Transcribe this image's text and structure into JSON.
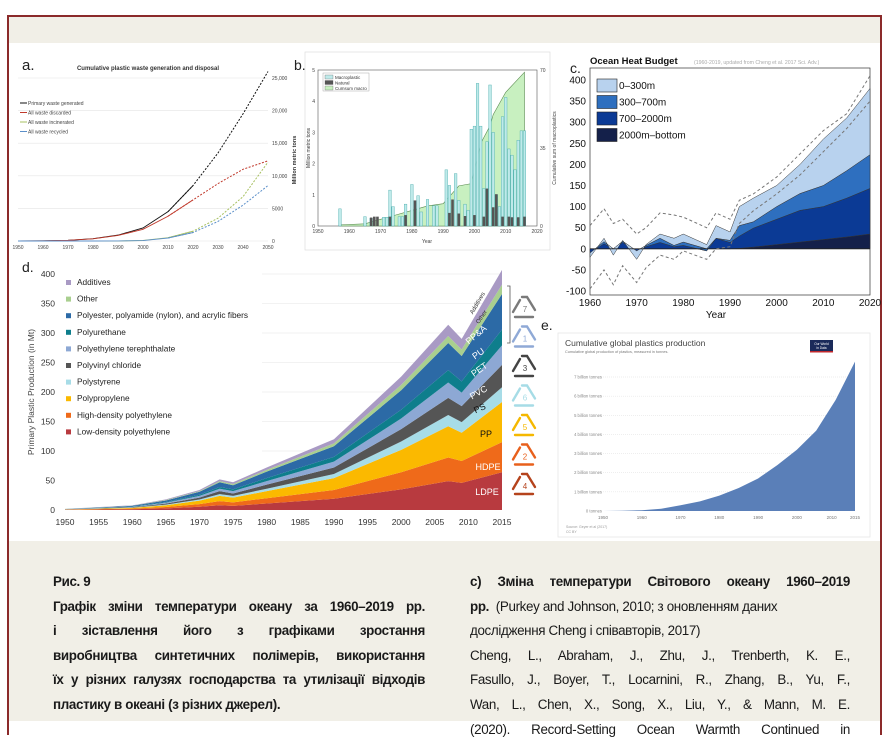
{
  "caption": {
    "fig_label": "Рис. 9",
    "left_lines": [
      "Графік зміни температури океану за 1960–2019 рр.",
      "і зіставлення його з графіками зростання",
      "виробництва синтетичних полімерів, використання",
      "їх у різних галузях господарства та утилізації відходів",
      "пластику в океані (з різних джерел)."
    ],
    "right_title_lines": [
      "c) Зміна температури Світового океану 1960–2019",
      "рр."
    ],
    "right_note_a": "(Purkey and Johnson, 2010; з оновленням даних",
    "right_note_b": "дослідження Cheng і співавторів, 2017)",
    "right_ref_lines": [
      "Cheng, L., Abraham, J., Zhu, J., Trenberth, K. E.,",
      "Fasullo, J., Boyer, T., Locarnini, R., Zhang, B., Yu, F.,",
      "Wan, L., Chen, X., Song, X., Liu, Y., & Mann, M. E.",
      "(2020). Record-Setting Ocean Warmth Continued in"
    ]
  },
  "chart_data": [
    {
      "panel": "a.",
      "type": "line",
      "title": "Cumulative plastic waste generation and disposal",
      "ylabel": "Million metric tons",
      "xlim": [
        1950,
        2050
      ],
      "ylim": [
        0,
        25000
      ],
      "xticks": [
        1950,
        1960,
        1970,
        1980,
        1990,
        2000,
        2010,
        2020,
        2030,
        2040,
        2050
      ],
      "yticks": [
        0,
        5000,
        10000,
        15000,
        20000,
        25000
      ],
      "ytick_labels": [
        "0",
        "5000",
        "10,000",
        "15,000",
        "20,000",
        "25,000"
      ],
      "grid": true,
      "legend": "top-left",
      "projection_from": 2015,
      "x": [
        1950,
        1960,
        1970,
        1980,
        1990,
        2000,
        2010,
        2020,
        2030,
        2040,
        2050
      ],
      "series": [
        {
          "name": "Primary waste generated",
          "color": "#111111",
          "values": [
            0,
            30,
            100,
            350,
            900,
            2000,
            4500,
            8500,
            13500,
            19500,
            26000
          ]
        },
        {
          "name": "All waste discarded",
          "color": "#c0392b",
          "values": [
            0,
            30,
            100,
            340,
            850,
            1800,
            3800,
            6300,
            8800,
            11000,
            12300
          ]
        },
        {
          "name": "All waste incinerated",
          "color": "#a7c060",
          "values": [
            0,
            0,
            0,
            0,
            10,
            80,
            500,
            1500,
            3500,
            6800,
            12100
          ]
        },
        {
          "name": "All waste recycled",
          "color": "#5b8fc9",
          "values": [
            0,
            0,
            0,
            0,
            5,
            60,
            450,
            1300,
            3000,
            5500,
            8500
          ]
        }
      ]
    },
    {
      "panel": "b.",
      "type": "bar",
      "xlabel": "Year",
      "ylabel": "Million metric tons",
      "y2label": "Cumulative sum of macroplastics",
      "xlim": [
        1950,
        2020
      ],
      "ylim": [
        0,
        5
      ],
      "y2lim": [
        0,
        70
      ],
      "xticks": [
        1950,
        1960,
        1970,
        1980,
        1990,
        2000,
        2010,
        2020
      ],
      "yticks": [
        0,
        1,
        2,
        3,
        4,
        5
      ],
      "y2ticks": [
        0,
        35,
        70
      ],
      "legend": "top-left",
      "series_names": {
        "macro": "Macroplastic",
        "natural": "Natural",
        "cumsum": "Cumsum macro"
      },
      "colors": {
        "macro": "#bfeaea",
        "natural": "#555555",
        "cumsum": "#c8f0c0"
      },
      "bars": [
        {
          "year": 1957,
          "macro": 0.55,
          "natural": 0
        },
        {
          "year": 1965,
          "macro": 0.3,
          "natural": 0
        },
        {
          "year": 1967,
          "macro": 0.25,
          "natural": 0.27
        },
        {
          "year": 1968,
          "macro": 0,
          "natural": 0.3
        },
        {
          "year": 1969,
          "macro": 0,
          "natural": 0.3
        },
        {
          "year": 1971,
          "macro": 0.28,
          "natural": 0
        },
        {
          "year": 1972,
          "macro": 0.28,
          "natural": 0
        },
        {
          "year": 1973,
          "macro": 1.15,
          "natural": 0.3
        },
        {
          "year": 1974,
          "macro": 0.62,
          "natural": 0
        },
        {
          "year": 1976,
          "macro": 0.3,
          "natural": 0
        },
        {
          "year": 1977,
          "macro": 0.3,
          "natural": 0
        },
        {
          "year": 1978,
          "macro": 0.7,
          "natural": 0.35
        },
        {
          "year": 1980,
          "macro": 1.33,
          "natural": 0
        },
        {
          "year": 1981,
          "macro": 0,
          "natural": 0.82
        },
        {
          "year": 1982,
          "macro": 0.97,
          "natural": 0
        },
        {
          "year": 1983,
          "macro": 0.45,
          "natural": 0
        },
        {
          "year": 1985,
          "macro": 0.85,
          "natural": 0
        },
        {
          "year": 1987,
          "macro": 0.65,
          "natural": 0
        },
        {
          "year": 1988,
          "macro": 0.65,
          "natural": 0
        },
        {
          "year": 1991,
          "macro": 1.8,
          "natural": 0
        },
        {
          "year": 1992,
          "macro": 1.3,
          "natural": 0.42
        },
        {
          "year": 1993,
          "macro": 0,
          "natural": 0.85
        },
        {
          "year": 1994,
          "macro": 1.68,
          "natural": 0
        },
        {
          "year": 1995,
          "macro": 0.82,
          "natural": 0.4
        },
        {
          "year": 1997,
          "macro": 0.7,
          "natural": 0.32
        },
        {
          "year": 1998,
          "macro": 0.5,
          "natural": 0
        },
        {
          "year": 1999,
          "macro": 3.1,
          "natural": 0
        },
        {
          "year": 2000,
          "macro": 3.2,
          "natural": 0.35
        },
        {
          "year": 2001,
          "macro": 4.57,
          "natural": 0
        },
        {
          "year": 2002,
          "macro": 3.2,
          "natural": 0
        },
        {
          "year": 2003,
          "macro": 1.2,
          "natural": 0.3
        },
        {
          "year": 2004,
          "macro": 2.7,
          "natural": 1.2
        },
        {
          "year": 2005,
          "macro": 4.52,
          "natural": 0
        },
        {
          "year": 2006,
          "macro": 3.0,
          "natural": 0.6
        },
        {
          "year": 2007,
          "macro": 1.0,
          "natural": 1.02
        },
        {
          "year": 2008,
          "macro": 0.62,
          "natural": 0
        },
        {
          "year": 2009,
          "macro": 3.5,
          "natural": 0.3
        },
        {
          "year": 2010,
          "macro": 4.12,
          "natural": 0
        },
        {
          "year": 2011,
          "macro": 2.47,
          "natural": 0.3
        },
        {
          "year": 2012,
          "macro": 2.27,
          "natural": 0.28
        },
        {
          "year": 2013,
          "macro": 1.8,
          "natural": 0
        },
        {
          "year": 2014,
          "macro": 2.75,
          "natural": 0.28
        },
        {
          "year": 2015,
          "macro": 3.05,
          "natural": 0
        },
        {
          "year": 2016,
          "macro": 3.05,
          "natural": 0.3
        }
      ],
      "cumsum": {
        "x": [
          1957,
          1965,
          1970,
          1975,
          1980,
          1985,
          1990,
          1995,
          1999,
          2000,
          2002,
          2005,
          2006,
          2010,
          2016
        ],
        "values": [
          0.5,
          1,
          3,
          5,
          7,
          9,
          10,
          18,
          19,
          25,
          37,
          45,
          50,
          60,
          69
        ]
      }
    },
    {
      "panel": "c.",
      "type": "area",
      "title": "Ocean Heat Budget",
      "subtitle": "(1960-2019, updated from Cheng et al. 2017 Sci. Adv.)",
      "xlabel": "Year",
      "xlim": [
        1960,
        2020
      ],
      "ylim": [
        -100,
        420
      ],
      "xticks": [
        1960,
        1970,
        1980,
        1990,
        2000,
        2010,
        2020
      ],
      "yticks": [
        -100,
        -50,
        0,
        50,
        100,
        150,
        200,
        250,
        300,
        350,
        400
      ],
      "legend": "top-left",
      "stacked": true,
      "x": [
        1960,
        1963,
        1965,
        1967,
        1970,
        1972,
        1975,
        1978,
        1980,
        1985,
        1987,
        1990,
        1992,
        1995,
        2000,
        2005,
        2010,
        2015,
        2020
      ],
      "series": [
        {
          "name": "2000m–bottom",
          "color": "#14204a",
          "values": [
            0,
            0,
            0,
            0,
            0,
            0,
            0,
            0,
            0,
            0,
            0,
            0,
            1,
            4,
            10,
            16,
            22,
            28,
            35
          ]
        },
        {
          "name": "700–2000m",
          "color": "#0b3a95",
          "values": [
            -10,
            12,
            0,
            15,
            -5,
            5,
            15,
            5,
            8,
            -5,
            25,
            15,
            29,
            45,
            60,
            75,
            78,
            92,
            108
          ]
        },
        {
          "name": "300–700m",
          "color": "#2e6fbf",
          "values": [
            0,
            5,
            0,
            3,
            0,
            3,
            10,
            3,
            8,
            5,
            0,
            5,
            25,
            15,
            30,
            40,
            50,
            65,
            80
          ]
        },
        {
          "name": "0–300m",
          "color": "#b8d2ee",
          "values": [
            -10,
            8,
            -15,
            2,
            -20,
            2,
            10,
            17,
            19,
            10,
            30,
            20,
            45,
            56,
            50,
            69,
            110,
            125,
            157
          ]
        }
      ],
      "uncertainty_upper": [
        55,
        95,
        60,
        70,
        35,
        50,
        85,
        80,
        75,
        50,
        85,
        70,
        115,
        130,
        170,
        225,
        280,
        320,
        410
      ],
      "uncertainty_lower": [
        -95,
        -50,
        -85,
        -40,
        -80,
        -45,
        -15,
        -25,
        -5,
        -25,
        0,
        5,
        60,
        90,
        130,
        175,
        230,
        285,
        350
      ]
    },
    {
      "panel": "d.",
      "type": "area",
      "ylabel": "Primary Plastic Production (in Mt)",
      "xlim": [
        1950,
        2015
      ],
      "ylim": [
        0,
        400
      ],
      "xticks": [
        1950,
        1955,
        1960,
        1965,
        1970,
        1975,
        1980,
        1985,
        1990,
        1995,
        2000,
        2005,
        2010,
        2015
      ],
      "yticks": [
        0,
        50,
        100,
        150,
        200,
        250,
        300,
        350,
        400
      ],
      "grid": true,
      "legend": "top-left",
      "stacked": true,
      "x": [
        1950,
        1960,
        1965,
        1970,
        1973,
        1975,
        1980,
        1990,
        2000,
        2007,
        2009,
        2015
      ],
      "series": [
        {
          "name": "Low-density polyethylene",
          "short": "LDPE",
          "code": "4",
          "color": "#b83a3f",
          "label_color": "#ffffff",
          "values": [
            0.3,
            1.3,
            2.8,
            5.5,
            8,
            7,
            11,
            19,
            35,
            49,
            46,
            64
          ]
        },
        {
          "name": "High-density polyethylene",
          "short": "HDPE",
          "code": "2",
          "color": "#ef6a1a",
          "label_color": "#ffffff",
          "values": [
            0.3,
            1,
            2.3,
            4.4,
            7,
            6,
            9,
            15,
            29,
            40,
            37,
            51
          ]
        },
        {
          "name": "Polypropylene",
          "short": "PP",
          "code": "5",
          "color": "#fbb900",
          "label_color": "#111111",
          "values": [
            0.3,
            1.3,
            3,
            6,
            9,
            8,
            12,
            20,
            38,
            53,
            48,
            68
          ]
        },
        {
          "name": "Polystyrene",
          "short": "PS",
          "code": "6",
          "color": "#a7dce7",
          "label_color": "#111111",
          "values": [
            0.1,
            0.5,
            1.1,
            2,
            3,
            3,
            4,
            7,
            14,
            19,
            18,
            25
          ]
        },
        {
          "name": "Polyvinyl chloride",
          "short": "PVC",
          "code": "3",
          "color": "#555555",
          "label_color": "#ffffff",
          "values": [
            0.2,
            0.7,
            1.7,
            3,
            5,
            4,
            7,
            11,
            21,
            29,
            27,
            38
          ]
        },
        {
          "name": "Polyethylene terephthalate",
          "short": "PET",
          "code": "1",
          "color": "#8da8d4",
          "label_color": "#ffffff",
          "values": [
            0.2,
            0.6,
            1.5,
            3,
            4,
            4,
            6,
            10,
            18,
            26,
            23,
            33
          ]
        },
        {
          "name": "Polyurethane",
          "short": "PU",
          "code": "",
          "color": "#0e7e8c",
          "label_color": "#ffffff",
          "values": [
            0.1,
            0.5,
            1.2,
            2,
            3,
            3,
            5,
            8,
            15,
            21,
            19,
            27
          ]
        },
        {
          "name": "Polyester, polyamide (nylon), and acrylic fibers",
          "short": "PP&A",
          "code": "7",
          "color": "#2c6aa6",
          "label_color": "#ffffff",
          "values": [
            0.3,
            1.2,
            2.6,
            5,
            8,
            7,
            11,
            18,
            33,
            46,
            43,
            60
          ]
        },
        {
          "name": "Other",
          "short": "Other",
          "code": "7",
          "color": "#a9cf8f",
          "label_color": "#333333",
          "values": [
            0.1,
            0.3,
            0.7,
            1,
            2,
            2,
            3,
            5,
            9,
            12,
            11,
            16
          ]
        },
        {
          "name": "Additives",
          "short": "Additives",
          "code": "7",
          "color": "#a99ac4",
          "label_color": "#333333",
          "values": [
            0.1,
            0.5,
            1.1,
            2,
            3,
            3,
            4,
            7,
            14,
            19,
            18,
            25
          ]
        }
      ],
      "recycling_codes": [
        {
          "code": "7",
          "color": "#7a7a7a"
        },
        {
          "code": "1",
          "color": "#8fa9d6"
        },
        {
          "code": "3",
          "color": "#444444"
        },
        {
          "code": "6",
          "color": "#a6dce6"
        },
        {
          "code": "5",
          "color": "#f5b800"
        },
        {
          "code": "2",
          "color": "#e8601c"
        },
        {
          "code": "4",
          "color": "#b5431c"
        }
      ]
    },
    {
      "panel": "e.",
      "type": "area",
      "title": "Cumulative global plastics production",
      "subtitle": "Cumulative global production of plastics, measured in tonnes.",
      "source": "Source: Geyer et al (2017)",
      "license": "CC BY",
      "logo": "Our World in Data",
      "xlim": [
        1950,
        2015
      ],
      "ylim": [
        0,
        8
      ],
      "xticks": [
        1950,
        1960,
        1970,
        1980,
        1990,
        2000,
        2010,
        2015
      ],
      "yticks": [
        0,
        1,
        2,
        3,
        4,
        5,
        6,
        7
      ],
      "ytick_labels": [
        "0 tonnes",
        "1 billion tonnes",
        "2 billion tonnes",
        "3 billion tonnes",
        "4 billion tonnes",
        "5 billion tonnes",
        "6 billion tonnes",
        "7 billion tonnes"
      ],
      "grid": true,
      "color": "#5a7fb8",
      "x": [
        1950,
        1955,
        1960,
        1965,
        1970,
        1975,
        1980,
        1985,
        1990,
        1995,
        2000,
        2005,
        2010,
        2015
      ],
      "values": [
        0,
        0.01,
        0.04,
        0.12,
        0.3,
        0.5,
        0.8,
        1.2,
        1.7,
        2.4,
        3.2,
        4.2,
        5.8,
        7.8
      ]
    }
  ]
}
